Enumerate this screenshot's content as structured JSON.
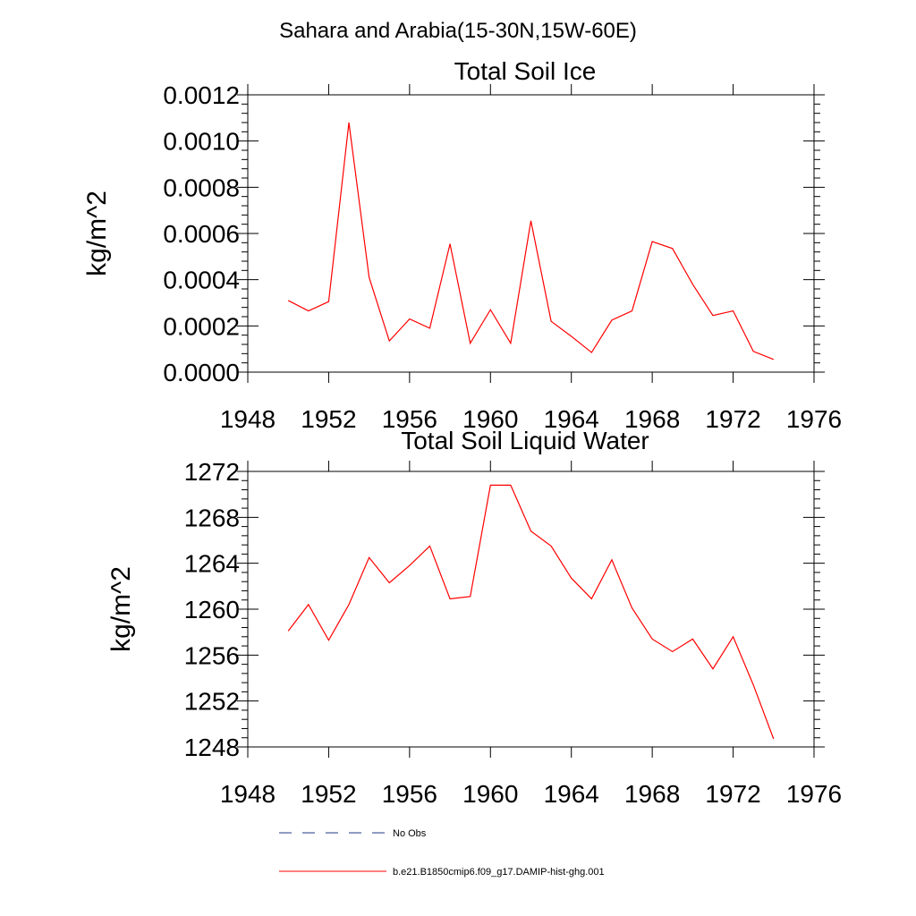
{
  "title": "Sahara and Arabia(15-30N,15W-60E)",
  "colors": {
    "model": "#ff0000",
    "obs": "#1f3a8a",
    "axis": "#000000"
  },
  "legend": [
    {
      "label": "No Obs",
      "style": "dashed",
      "color": "#1f3a8a"
    },
    {
      "label": "b.e21.B1850cmip6.f09_g17.DAMIP-hist-ghg.001",
      "style": "solid",
      "color": "#ff0000"
    }
  ],
  "chart_data": [
    {
      "type": "line",
      "title": "Total Soil Ice",
      "xlabel": "",
      "ylabel": "kg/m^2",
      "xlim": [
        1948,
        1976
      ],
      "ylim": [
        0,
        0.0012
      ],
      "xticks": [
        "1948",
        "1952",
        "1956",
        "1960",
        "1964",
        "1968",
        "1972",
        "1976"
      ],
      "yticks": [
        "0.0000",
        "0.0002",
        "0.0004",
        "0.0006",
        "0.0008",
        "0.0010",
        "0.0012"
      ],
      "grid": false,
      "x": [
        1950,
        1951,
        1952,
        1953,
        1954,
        1955,
        1956,
        1957,
        1958,
        1959,
        1960,
        1961,
        1962,
        1963,
        1964,
        1965,
        1966,
        1967,
        1968,
        1969,
        1970,
        1971,
        1972,
        1973,
        1974
      ],
      "series": [
        {
          "name": "b.e21.B1850cmip6.f09_g17.DAMIP-hist-ghg.001",
          "values": [
            0.00031,
            0.000265,
            0.000305,
            0.00108,
            0.00041,
            0.000135,
            0.00023,
            0.00019,
            0.000555,
            0.000125,
            0.00027,
            0.000125,
            0.000655,
            0.00022,
            0.000155,
            8.5e-05,
            0.000225,
            0.000265,
            0.000565,
            0.000535,
            0.00038,
            0.000245,
            0.000265,
            9e-05,
            5.5e-05
          ]
        }
      ]
    },
    {
      "type": "line",
      "title": "Total Soil Liquid Water",
      "xlabel": "",
      "ylabel": "kg/m^2",
      "xlim": [
        1948,
        1976
      ],
      "ylim": [
        1248,
        1272
      ],
      "xticks": [
        "1948",
        "1952",
        "1956",
        "1960",
        "1964",
        "1968",
        "1972",
        "1976"
      ],
      "yticks": [
        "1248",
        "1252",
        "1256",
        "1260",
        "1264",
        "1268",
        "1272"
      ],
      "grid": false,
      "x": [
        1950,
        1951,
        1952,
        1953,
        1954,
        1955,
        1956,
        1957,
        1958,
        1959,
        1960,
        1961,
        1962,
        1963,
        1964,
        1965,
        1966,
        1967,
        1968,
        1969,
        1970,
        1971,
        1972,
        1973,
        1974
      ],
      "series": [
        {
          "name": "b.e21.B1850cmip6.f09_g17.DAMIP-hist-ghg.001",
          "values": [
            1258.1,
            1260.4,
            1257.3,
            1260.4,
            1264.5,
            1262.3,
            1263.8,
            1265.5,
            1260.9,
            1261.1,
            1270.8,
            1270.8,
            1266.8,
            1265.5,
            1262.7,
            1260.9,
            1264.3,
            1260.1,
            1257.4,
            1256.3,
            1257.4,
            1254.8,
            1257.6,
            1253.4,
            1248.7
          ]
        }
      ]
    }
  ]
}
